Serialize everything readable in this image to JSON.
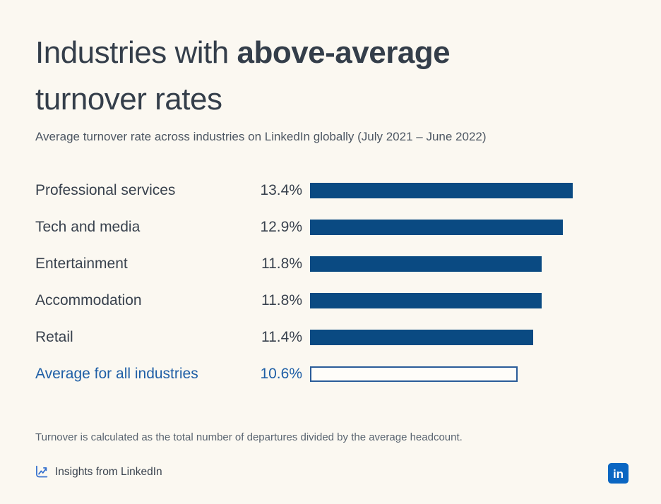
{
  "page": {
    "background_color": "#FBF8F1"
  },
  "header": {
    "title_line1_regular": "Industries with",
    "title_line1_bold": "above-average",
    "title_line2": "turnover rates",
    "subtitle": "Average turnover rate across industries on LinkedIn globally (July 2021 – June 2022)"
  },
  "chart_data": {
    "type": "bar",
    "orientation": "horizontal",
    "title": "Industries with above-average turnover rates",
    "subtitle": "Average turnover rate across industries on LinkedIn globally (July 2021 – June 2022)",
    "unit": "%",
    "xlim": [
      0,
      13.4
    ],
    "grid": false,
    "legend": false,
    "categories": [
      "Professional services",
      "Tech and media",
      "Entertainment",
      "Accommodation",
      "Retail",
      "Average for all industries"
    ],
    "values": [
      13.4,
      12.9,
      11.8,
      11.8,
      11.4,
      10.6
    ],
    "rows": [
      {
        "label": "Professional services",
        "value": 13.4,
        "value_label": "13.4%",
        "filled": true,
        "highlight": false
      },
      {
        "label": "Tech and media",
        "value": 12.9,
        "value_label": "12.9%",
        "filled": true,
        "highlight": false
      },
      {
        "label": "Entertainment",
        "value": 11.8,
        "value_label": "11.8%",
        "filled": true,
        "highlight": false
      },
      {
        "label": "Accommodation",
        "value": 11.8,
        "value_label": "11.8%",
        "filled": true,
        "highlight": false
      },
      {
        "label": "Retail",
        "value": 11.4,
        "value_label": "11.4%",
        "filled": true,
        "highlight": false
      },
      {
        "label": "Average for all industries",
        "value": 10.6,
        "value_label": "10.6%",
        "filled": false,
        "highlight": true
      }
    ],
    "bar_color": "#0A4A82",
    "bar_outline_color": "#2A5C99",
    "highlight_text_color": "#1F5FA6"
  },
  "footer": {
    "note": "Turnover is calculated as the total number of departures divided by the average headcount.",
    "insights_label": "Insights from LinkedIn",
    "linkedin_logo_text": "in",
    "linkedin_blue": "#0A66C2",
    "insights_icon_color": "#3570CE"
  }
}
